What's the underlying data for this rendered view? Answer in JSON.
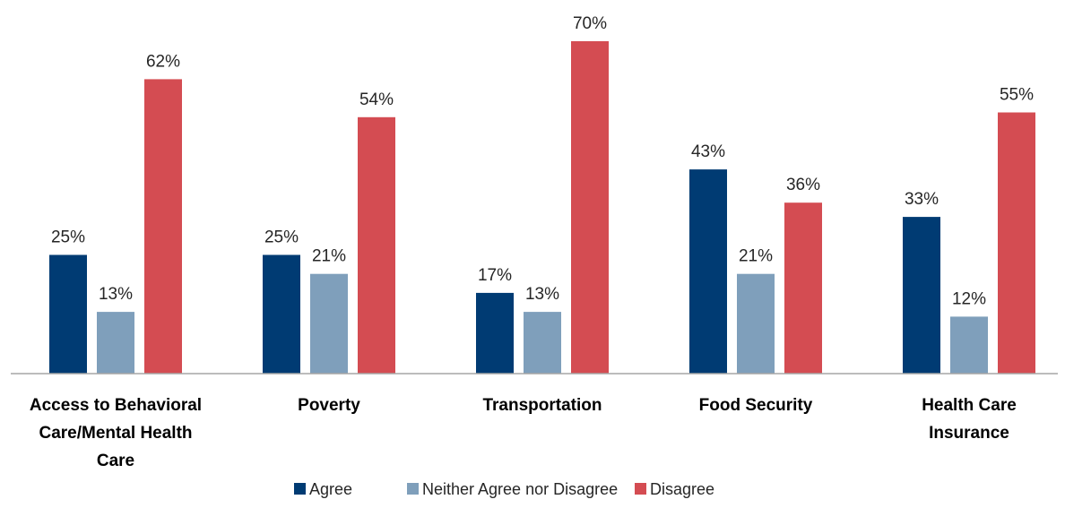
{
  "chart_data": {
    "type": "bar",
    "title": "",
    "xlabel": "",
    "ylabel": "",
    "ylim": [
      0,
      70
    ],
    "grid": false,
    "legend_position": "bottom",
    "categories": [
      [
        "Access to Behavioral",
        "Care/Mental Health",
        "Care"
      ],
      [
        "Poverty"
      ],
      [
        "Transportation"
      ],
      [
        "Food Security"
      ],
      [
        "Health Care",
        "Insurance"
      ]
    ],
    "series": [
      {
        "name": "Agree",
        "color": "#003b73",
        "values": [
          25,
          25,
          17,
          43,
          33
        ],
        "labels": [
          "25%",
          "25%",
          "17%",
          "43%",
          "33%"
        ]
      },
      {
        "name": "Neither Agree nor Disagree",
        "color": "#7f9fbb",
        "values": [
          13,
          21,
          13,
          21,
          12
        ],
        "labels": [
          "13%",
          "21%",
          "13%",
          "21%",
          "12%"
        ]
      },
      {
        "name": "Disagree",
        "color": "#d44c52",
        "values": [
          62,
          54,
          70,
          36,
          55
        ],
        "labels": [
          "62%",
          "54%",
          "70%",
          "36%",
          "55%"
        ]
      }
    ]
  }
}
